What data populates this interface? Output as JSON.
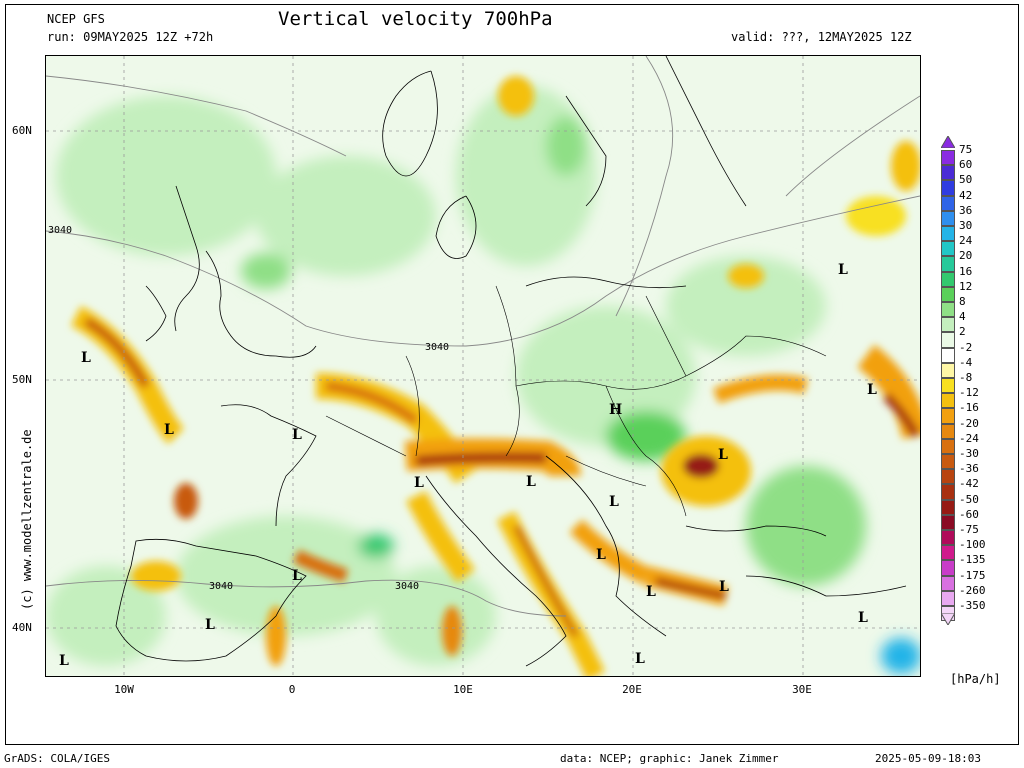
{
  "header": {
    "model": "NCEP GFS",
    "run": "run: 09MAY2025 12Z +72h",
    "title": "Vertical velocity 700hPa",
    "valid": "valid: ???, 12MAY2025 12Z"
  },
  "axes": {
    "lat_labels": [
      "60N",
      "50N",
      "40N"
    ],
    "lon_labels": [
      "10W",
      "0",
      "10E",
      "20E",
      "30E"
    ]
  },
  "map": {
    "contour_labels": [
      "3040",
      "3040",
      "3040",
      "3040"
    ],
    "pressure_centers": [
      "L",
      "L",
      "L",
      "L",
      "L",
      "L",
      "L",
      "L",
      "L",
      "L",
      "L",
      "L",
      "L",
      "L",
      "L",
      "L",
      "L",
      "H"
    ],
    "region": "Europe"
  },
  "colorbar": {
    "levels": [
      "75",
      "60",
      "50",
      "42",
      "36",
      "30",
      "24",
      "20",
      "16",
      "12",
      "8",
      "4",
      "2",
      "-2",
      "-4",
      "-8",
      "-12",
      "-16",
      "-20",
      "-24",
      "-30",
      "-36",
      "-42",
      "-50",
      "-60",
      "-75",
      "-100",
      "-135",
      "-175",
      "-260",
      "-350"
    ],
    "colors": [
      "#8a2be2",
      "#4b2bd6",
      "#2f3ce0",
      "#2f64e8",
      "#2f8fee",
      "#24b4e8",
      "#22c7c7",
      "#26c99a",
      "#32c86e",
      "#5ad05a",
      "#8fdf86",
      "#c4efbe",
      "#eaf9e6",
      "#ffffff",
      "#fff7a6",
      "#f8e020",
      "#f4c010",
      "#f2a010",
      "#e68810",
      "#d87010",
      "#c85a10",
      "#b84410",
      "#a83010",
      "#961a14",
      "#8a0a24",
      "#b00a5a",
      "#d01a8c",
      "#c83cc8",
      "#d870e0",
      "#e8a8f0",
      "#f4d6f8"
    ],
    "unit": "[hPa/h]"
  },
  "footer": {
    "left": "GrADS: COLA/IGES",
    "center": "data: NCEP; graphic: Janek Zimmer",
    "right": "2025-05-09-18:03"
  },
  "credit": "(c) www.modellzentrale.de"
}
